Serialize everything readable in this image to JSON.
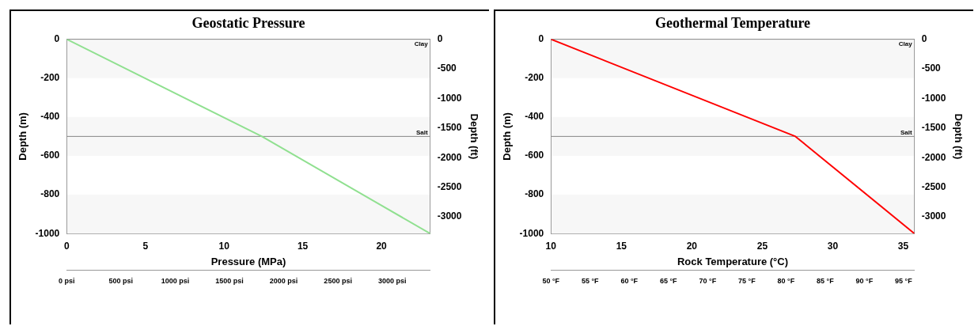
{
  "chart_data": [
    {
      "type": "line",
      "title": "Geostatic Pressure",
      "xlabel": "Pressure (MPa)",
      "ylabel": "Depth (m)",
      "y2label": "Depth (ft)",
      "series": [
        {
          "color": "#90e090",
          "x": [
            0,
            12.4,
            23.1
          ],
          "values": [
            0,
            -500,
            -1000
          ]
        }
      ],
      "xlim": [
        0,
        23.1
      ],
      "xticks": [
        0,
        5,
        10,
        15,
        20
      ],
      "x2lim": [
        0,
        3350
      ],
      "x2ticks": [
        {
          "value": 0,
          "label": "0 psi"
        },
        {
          "value": 500,
          "label": "500 psi"
        },
        {
          "value": 1000,
          "label": "1000 psi"
        },
        {
          "value": 1500,
          "label": "1500 psi"
        },
        {
          "value": 2000,
          "label": "2000 psi"
        },
        {
          "value": 2500,
          "label": "2500 psi"
        },
        {
          "value": 3000,
          "label": "3000 psi"
        }
      ],
      "ylim": [
        -1000,
        0
      ],
      "yticks": [
        -1000,
        -800,
        -600,
        -400,
        -200,
        0
      ],
      "y2lim": [
        -3281,
        0
      ],
      "y2ticks": [
        -3000,
        -2500,
        -2000,
        -1500,
        -1000,
        -500,
        0
      ],
      "bands": [
        {
          "axis": "y",
          "from": 0,
          "to": -200,
          "color": "#f7f7f7"
        },
        {
          "axis": "y",
          "from": -400,
          "to": -600,
          "color": "#f7f7f7"
        },
        {
          "axis": "y",
          "from": -800,
          "to": -1000,
          "color": "#f7f7f7"
        }
      ],
      "ref_lines": [
        {
          "axis": "y",
          "value": 0,
          "label": "Clay",
          "color": "#888888"
        },
        {
          "axis": "y",
          "value": -500,
          "label": "Salt",
          "color": "#888888"
        }
      ]
    },
    {
      "type": "line",
      "title": "Geothermal Temperature",
      "xlabel": "Rock Temperature (°C)",
      "ylabel": "Depth (m)",
      "y2label": "Depth (ft)",
      "series": [
        {
          "color": "#ff0000",
          "x": [
            10,
            27.35,
            35.8
          ],
          "values": [
            0,
            -500,
            -1000
          ]
        }
      ],
      "xlim": [
        10,
        35.8
      ],
      "xticks": [
        10,
        15,
        20,
        25,
        30,
        35
      ],
      "x2lim": [
        50,
        96.4
      ],
      "x2ticks": [
        {
          "value": 50,
          "label": "50 °F"
        },
        {
          "value": 55,
          "label": "55 °F"
        },
        {
          "value": 60,
          "label": "60 °F"
        },
        {
          "value": 65,
          "label": "65 °F"
        },
        {
          "value": 70,
          "label": "70 °F"
        },
        {
          "value": 75,
          "label": "75 °F"
        },
        {
          "value": 80,
          "label": "80 °F"
        },
        {
          "value": 85,
          "label": "85 °F"
        },
        {
          "value": 90,
          "label": "90 °F"
        },
        {
          "value": 95,
          "label": "95 °F"
        }
      ],
      "ylim": [
        -1000,
        0
      ],
      "yticks": [
        -1000,
        -800,
        -600,
        -400,
        -200,
        0
      ],
      "y2lim": [
        -3281,
        0
      ],
      "y2ticks": [
        -3000,
        -2500,
        -2000,
        -1500,
        -1000,
        -500,
        0
      ],
      "bands": [
        {
          "axis": "y",
          "from": 0,
          "to": -200,
          "color": "#f7f7f7"
        },
        {
          "axis": "y",
          "from": -400,
          "to": -600,
          "color": "#f7f7f7"
        },
        {
          "axis": "y",
          "from": -800,
          "to": -1000,
          "color": "#f7f7f7"
        }
      ],
      "ref_lines": [
        {
          "axis": "y",
          "value": 0,
          "label": "Clay",
          "color": "#888888"
        },
        {
          "axis": "y",
          "value": -500,
          "label": "Salt",
          "color": "#888888"
        }
      ]
    }
  ]
}
